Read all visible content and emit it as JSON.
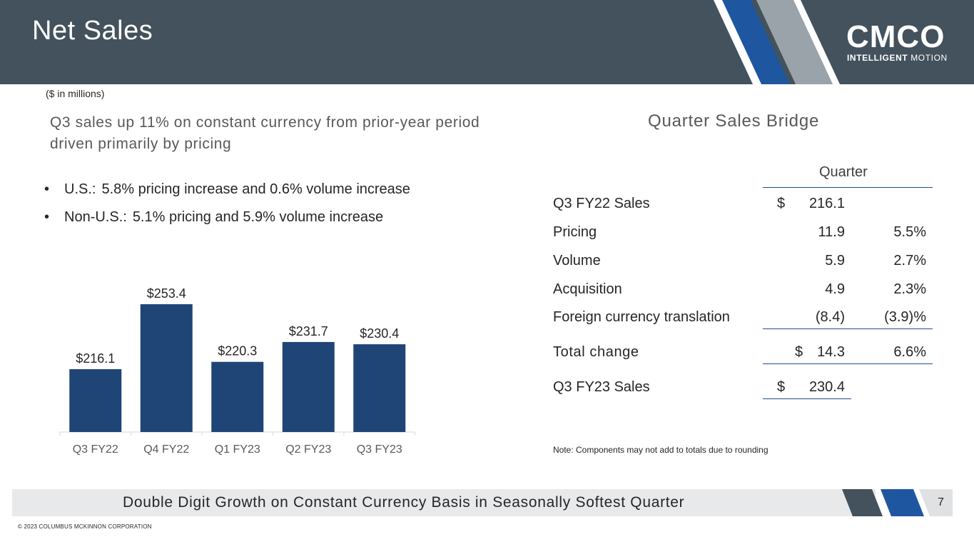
{
  "header": {
    "title": "Net Sales"
  },
  "logo": {
    "word": "CMCO",
    "tag_bold": "INTELLIGENT",
    "tag_rest": "MOTION"
  },
  "units": "($ in millions)",
  "headline": "Q3 sales up 11% on constant currency from prior-year period driven primarily by pricing",
  "bullets": [
    {
      "label": "U.S.:",
      "text": "5.8% pricing increase and 0.6% volume increase"
    },
    {
      "label": "Non-U.S.:",
      "text": "5.1% pricing and 5.9% volume increase"
    }
  ],
  "chart_data": {
    "type": "bar",
    "title": "",
    "xlabel": "",
    "ylabel": "",
    "categories": [
      "Q3 FY22",
      "Q4 FY22",
      "Q1 FY23",
      "Q2 FY23",
      "Q3 FY23"
    ],
    "values": [
      216.1,
      253.4,
      220.3,
      231.7,
      230.4
    ],
    "data_labels": [
      "$216.1",
      "$253.4",
      "$220.3",
      "$231.7",
      "$230.4"
    ],
    "ylim": [
      180,
      260
    ],
    "grid": false,
    "bar_color": "#1f4577"
  },
  "bridge": {
    "title": "Quarter Sales Bridge",
    "column_header": "Quarter",
    "rows": [
      {
        "label": "Q3 FY22 Sales",
        "dollar": "$",
        "value": "216.1",
        "pct": ""
      },
      {
        "label": "Pricing",
        "dollar": "",
        "value": "11.9",
        "pct": "5.5%"
      },
      {
        "label": "Volume",
        "dollar": "",
        "value": "5.9",
        "pct": "2.7%"
      },
      {
        "label": "Acquisition",
        "dollar": "",
        "value": "4.9",
        "pct": "2.3%"
      },
      {
        "label": "Foreign currency translation",
        "dollar": "",
        "value": "(8.4)",
        "pct": "(3.9)%"
      },
      {
        "label": "Total change",
        "dollar": "$",
        "value": "14.3",
        "pct": "6.6%"
      },
      {
        "label": "Q3 FY23 Sales",
        "dollar": "$",
        "value": "230.4",
        "pct": ""
      }
    ],
    "note": "Note: Components may not add to totals due to rounding"
  },
  "footer": {
    "tagline": "Double Digit Growth on Constant Currency Basis in Seasonally Softest Quarter",
    "page": "7",
    "copyright": "© 2023 COLUMBUS MCKINNON CORPORATION"
  },
  "colors": {
    "header_bg": "#43525c",
    "accent_blue": "#1f56a0",
    "stripe_grey": "#9aa3a9",
    "bar": "#1f4577"
  }
}
